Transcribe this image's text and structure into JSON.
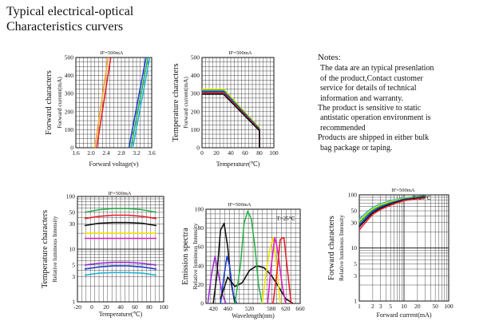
{
  "header": {
    "line1": "Typical electrical-optical",
    "line2": "Characteristics curvers"
  },
  "notes": {
    "heading": "Notes:",
    "lines": [
      "The data are an typical presenlation",
      "of the product,Contact customer",
      "service for details of technical",
      "information and warranty.",
      "The product is sensitive to static",
      "antistatic operation environment is",
      "recommended",
      "Products are shipped in either bulk",
      "bag package or taping."
    ]
  },
  "colors": {
    "red": "#e8202a",
    "orange": "#f5a623",
    "yellow": "#f0e000",
    "green": "#2bb24c",
    "cyan": "#27b3d6",
    "blue": "#1f3fd0",
    "black": "#111111",
    "violet": "#9b30d0",
    "magenta": "#e020c0"
  },
  "chart_data": [
    {
      "id": "forward-voltage",
      "type": "line",
      "title": "IF=500mA",
      "ylabel": "Forward characters",
      "ylabel2": "Forward current(mA)",
      "xlabel": "Forward voltage(v)",
      "xlim": [
        1.6,
        3.6
      ],
      "ylim": [
        0,
        500
      ],
      "xticks": [
        "1.6",
        "2.0",
        "2.4",
        "2.8",
        "3.2",
        "3.6"
      ],
      "yticks": [
        "0",
        "100",
        "200",
        "300",
        "400",
        "500"
      ],
      "series": [
        {
          "color": "orange",
          "x": [
            2.1,
            2.45
          ],
          "y": [
            0,
            500
          ]
        },
        {
          "color": "red",
          "x": [
            2.15,
            2.52
          ],
          "y": [
            0,
            500
          ]
        },
        {
          "color": "blue",
          "x": [
            3.0,
            3.45
          ],
          "y": [
            0,
            500
          ]
        },
        {
          "color": "green",
          "x": [
            3.05,
            3.5
          ],
          "y": [
            0,
            500
          ]
        },
        {
          "color": "cyan",
          "x": [
            3.1,
            3.55
          ],
          "y": [
            0,
            500
          ]
        }
      ]
    },
    {
      "id": "temperature-current",
      "type": "line",
      "title": "IF=500mA",
      "ylabel": "Temperature characters",
      "ylabel2": "Forward current(mA)",
      "xlabel": "Temperature(℃)",
      "xlim": [
        0,
        100
      ],
      "ylim": [
        0,
        500
      ],
      "xticks": [
        "0",
        "20",
        "40",
        "60",
        "80",
        "100"
      ],
      "yticks": [
        "0",
        "100",
        "200",
        "300",
        "400",
        "500"
      ],
      "series": [
        {
          "color": "yellow",
          "x": [
            0,
            30,
            80,
            80
          ],
          "y": [
            325,
            325,
            110,
            0
          ]
        },
        {
          "color": "green",
          "x": [
            0,
            30,
            80,
            80
          ],
          "y": [
            318,
            318,
            106,
            0
          ]
        },
        {
          "color": "blue",
          "x": [
            0,
            30,
            80,
            80
          ],
          "y": [
            311,
            311,
            102,
            0
          ]
        },
        {
          "color": "red",
          "x": [
            0,
            30,
            80,
            80
          ],
          "y": [
            304,
            304,
            98,
            0
          ]
        },
        {
          "color": "black",
          "x": [
            0,
            30,
            80,
            80
          ],
          "y": [
            297,
            297,
            94,
            0
          ]
        }
      ]
    },
    {
      "id": "temperature-intensity",
      "type": "line",
      "title": "IF=500mA",
      "ylabel": "Temperature characters",
      "ylabel2": "Relative luminous Intensity",
      "xlabel": "Temperature(℃)",
      "xlim": [
        -20,
        100
      ],
      "ylim": [
        1,
        100
      ],
      "log_y": true,
      "xticks": [
        "-20",
        "0",
        "20",
        "40",
        "60",
        "80",
        "100"
      ],
      "yticks": [
        "1",
        "3",
        "5",
        "10",
        "30",
        "50",
        "100"
      ],
      "series": [
        {
          "color": "green",
          "x": [
            -10,
            10,
            30,
            50,
            70,
            90
          ],
          "y": [
            50,
            56,
            59,
            59,
            56,
            50
          ]
        },
        {
          "color": "red",
          "x": [
            -10,
            10,
            30,
            50,
            70,
            90
          ],
          "y": [
            38,
            42,
            44,
            44,
            42,
            38
          ]
        },
        {
          "color": "black",
          "x": [
            -10,
            10,
            30,
            50,
            70,
            90
          ],
          "y": [
            28,
            31,
            32,
            32,
            31,
            28
          ]
        },
        {
          "color": "yellow",
          "x": [
            -10,
            10,
            30,
            50,
            70,
            90
          ],
          "y": [
            20,
            20,
            20,
            20,
            20,
            20
          ]
        },
        {
          "color": "magenta",
          "x": [
            -10,
            10,
            30,
            50,
            70,
            90
          ],
          "y": [
            16,
            16,
            16,
            16,
            16,
            16
          ]
        },
        {
          "color": "violet",
          "x": [
            -10,
            10,
            30,
            50,
            70,
            90
          ],
          "y": [
            5,
            5.4,
            5.6,
            5.6,
            5.4,
            5
          ]
        },
        {
          "color": "blue",
          "x": [
            -10,
            10,
            30,
            50,
            70,
            90
          ],
          "y": [
            4.2,
            4.6,
            4.8,
            4.8,
            4.6,
            4.2
          ]
        },
        {
          "color": "cyan",
          "x": [
            -10,
            10,
            30,
            50,
            70,
            90
          ],
          "y": [
            3.2,
            3.5,
            3.6,
            3.6,
            3.5,
            3.2
          ]
        }
      ]
    },
    {
      "id": "emission-spectra",
      "type": "line",
      "title": "IF=500mA",
      "annotation": "T=25℃",
      "ylabel": "Emission spectra",
      "ylabel2": "Relative luminous Intensity",
      "xlabel": "Wavelength(nm)",
      "xlim": [
        400,
        660
      ],
      "ylim": [
        0,
        100
      ],
      "xticks": [
        "420",
        "460",
        "520",
        "580",
        "620",
        "660"
      ],
      "xtick_values": [
        420,
        460,
        520,
        580,
        620,
        660
      ],
      "yticks": [
        "0",
        "20",
        "40",
        "60",
        "80",
        "100"
      ],
      "series": [
        {
          "color": "violet",
          "x": [
            405,
            415,
            425,
            435,
            445,
            455
          ],
          "y": [
            0,
            30,
            50,
            30,
            10,
            0
          ]
        },
        {
          "color": "black",
          "x": [
            420,
            430,
            440,
            450,
            460,
            470,
            480
          ],
          "y": [
            0,
            30,
            78,
            85,
            60,
            20,
            0
          ]
        },
        {
          "color": "blue",
          "x": [
            440,
            450,
            458,
            465,
            475,
            485
          ],
          "y": [
            0,
            30,
            50,
            40,
            10,
            0
          ]
        },
        {
          "color": "black",
          "x": [
            440,
            460,
            480,
            500,
            520,
            540,
            560,
            580,
            600,
            620,
            640
          ],
          "y": [
            5,
            28,
            18,
            22,
            35,
            40,
            38,
            30,
            18,
            5,
            0
          ]
        },
        {
          "color": "green",
          "x": [
            480,
            495,
            505,
            515,
            525,
            535,
            545,
            555
          ],
          "y": [
            0,
            40,
            85,
            98,
            90,
            60,
            20,
            0
          ]
        },
        {
          "color": "yellow",
          "x": [
            555,
            565,
            575,
            585,
            595,
            605
          ],
          "y": [
            0,
            30,
            55,
            70,
            40,
            0
          ]
        },
        {
          "color": "magenta",
          "x": [
            570,
            580,
            590,
            595,
            600,
            610,
            620
          ],
          "y": [
            0,
            40,
            70,
            62,
            50,
            20,
            0
          ]
        },
        {
          "color": "red",
          "x": [
            585,
            595,
            605,
            615,
            625,
            635
          ],
          "y": [
            0,
            30,
            68,
            70,
            35,
            0
          ]
        }
      ]
    },
    {
      "id": "forward-current-intensity",
      "type": "line",
      "title": "IF=500mA",
      "annotation": "T=25℃",
      "ylabel": "Forward characters",
      "ylabel2": "Relative luminous Intensity",
      "xlabel": "Forward current(mA)",
      "xlim": [
        1,
        100
      ],
      "ylim": [
        1,
        100
      ],
      "log_x": true,
      "log_y": true,
      "xticks": [
        "1",
        "2",
        "3",
        "5",
        "10",
        "20",
        "50",
        "100"
      ],
      "xtick_values": [
        1,
        2,
        3,
        5,
        10,
        20,
        50,
        100
      ],
      "yticks": [
        "1",
        "3",
        "5",
        "10",
        "30",
        "50",
        "100"
      ],
      "series": [
        {
          "color": "cyan",
          "x": [
            1,
            1.5,
            2,
            3,
            5,
            10,
            20,
            30
          ],
          "y": [
            35,
            48,
            58,
            68,
            78,
            88,
            94,
            96
          ]
        },
        {
          "color": "yellow",
          "x": [
            1,
            1.5,
            2,
            3,
            5,
            10,
            20,
            30
          ],
          "y": [
            32,
            45,
            55,
            65,
            75,
            86,
            92,
            94
          ]
        },
        {
          "color": "green",
          "x": [
            1,
            1.5,
            2,
            3,
            5,
            10,
            20,
            30
          ],
          "y": [
            30,
            42,
            52,
            62,
            72,
            84,
            90,
            93
          ]
        },
        {
          "color": "blue",
          "x": [
            1,
            1.5,
            2,
            3,
            5,
            10,
            20,
            30
          ],
          "y": [
            27,
            39,
            49,
            59,
            69,
            82,
            88,
            91
          ]
        },
        {
          "color": "black",
          "x": [
            1,
            1.5,
            2,
            3,
            5,
            10,
            20,
            30
          ],
          "y": [
            25,
            36,
            46,
            56,
            67,
            80,
            86,
            90
          ]
        },
        {
          "color": "red",
          "x": [
            1,
            1.5,
            2,
            3,
            5,
            10,
            20,
            30
          ],
          "y": [
            22,
            33,
            43,
            53,
            64,
            78,
            84,
            88
          ]
        }
      ]
    }
  ]
}
